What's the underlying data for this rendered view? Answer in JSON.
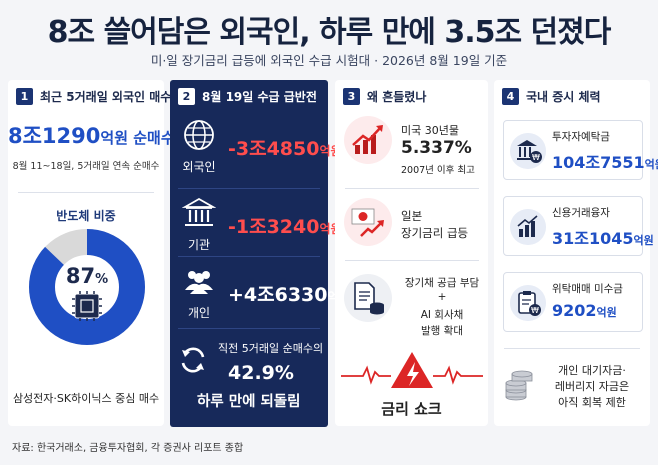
{
  "title": "8조 쓸어담은 외국인, 하루 만에 3.5조 던졌다",
  "subtitle": "미·일 장기금리 급등에 외국인 수급 시험대 · 2026년 8월 19일 기준",
  "panel1": {
    "num": "1",
    "header": "최근 5거래일 외국인 매수",
    "amount": "8조1290",
    "amount_suffix": "억원 순매수",
    "sub": "8월 11~18일, 5거래일 연속 순매수",
    "semi_label": "반도체 비중",
    "semi_pct_value": 87,
    "semi_pct": "87",
    "semi_pct_unit": "%",
    "footer": "삼성전자·SK하이닉스 중심 매수",
    "colors": {
      "fill": "#1f4fc4",
      "rest": "#d9d9d9"
    }
  },
  "panel2": {
    "num": "2",
    "header": "8월 19일 수급 급반전",
    "rows": [
      {
        "label": "외국인",
        "value": "-3조4850",
        "unit": "억원",
        "icon": "globe-icon"
      },
      {
        "label": "기관",
        "value": "-1조3240",
        "unit": "억원",
        "icon": "bank-icon"
      },
      {
        "label": "개인",
        "value": "+4조6330",
        "unit": "억원",
        "icon": "people-icon"
      }
    ],
    "bottom_line1": "직전 5거래일 순매수의",
    "bottom_pct": "42.9%",
    "bottom_line3": "하루 만에 되돌림"
  },
  "panel3": {
    "num": "3",
    "header": "왜 흔들렸나",
    "item1_label": "미국 30년물",
    "item1_value": "5.337%",
    "item1_note": "2007년 이후 최고",
    "item2_line1": "일본",
    "item2_line2": "장기금리 급등",
    "item3_line1": "장기채 공급 부담",
    "item3_line2": "+",
    "item3_line3": "AI 회사채",
    "item3_line4": "발행 확대",
    "alert_label": "금리 쇼크"
  },
  "panel4": {
    "num": "4",
    "header": "국내 증시 체력",
    "cards": [
      {
        "label": "투자자예탁금",
        "value": "104조7551",
        "unit": "억원",
        "icon": "bank-won-icon"
      },
      {
        "label": "신용거래융자",
        "value": "31조1045",
        "unit": "억원",
        "icon": "bar-chart-icon"
      },
      {
        "label": "위탁매매 미수금",
        "value": "9202",
        "unit": "억원",
        "icon": "clipboard-won-icon"
      }
    ],
    "note_line1": "개인 대기자금·",
    "note_line2": "레버리지 자금은",
    "note_line3": "아직 회복 제한"
  },
  "source": "자료: 한국거래소, 금융투자협회, 각 증권사 리포트 종합"
}
